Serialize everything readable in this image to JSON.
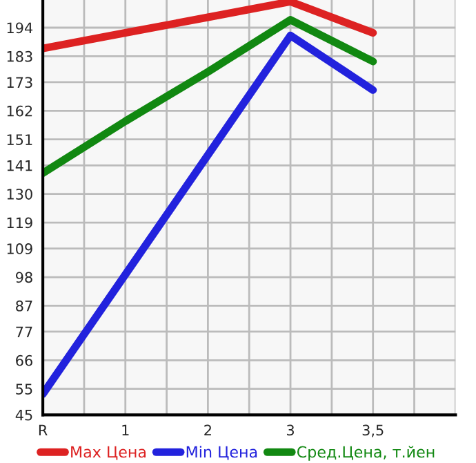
{
  "chart_data": {
    "type": "line",
    "categories": [
      "R",
      "1",
      "2",
      "3",
      "3,5",
      null
    ],
    "series": [
      {
        "name": "Max Цена",
        "color": "#dd2222",
        "values": [
          186,
          192,
          198,
          204,
          192,
          null
        ]
      },
      {
        "name": "Min Цена",
        "color": "#2222dd",
        "values": [
          53,
          99,
          145,
          191,
          170,
          null
        ]
      },
      {
        "name": "Сред.Цена, т.йен",
        "color": "#118811",
        "values": [
          138,
          158,
          177,
          197,
          181,
          null
        ]
      }
    ],
    "ylim": [
      45,
      204.64
    ],
    "yticks": [
      45,
      55,
      66,
      77,
      87,
      98,
      109,
      119,
      130,
      141,
      151,
      162,
      173,
      183,
      194
    ],
    "grid": true,
    "legend": "bottom",
    "marker": "none",
    "line_style": "solid"
  }
}
